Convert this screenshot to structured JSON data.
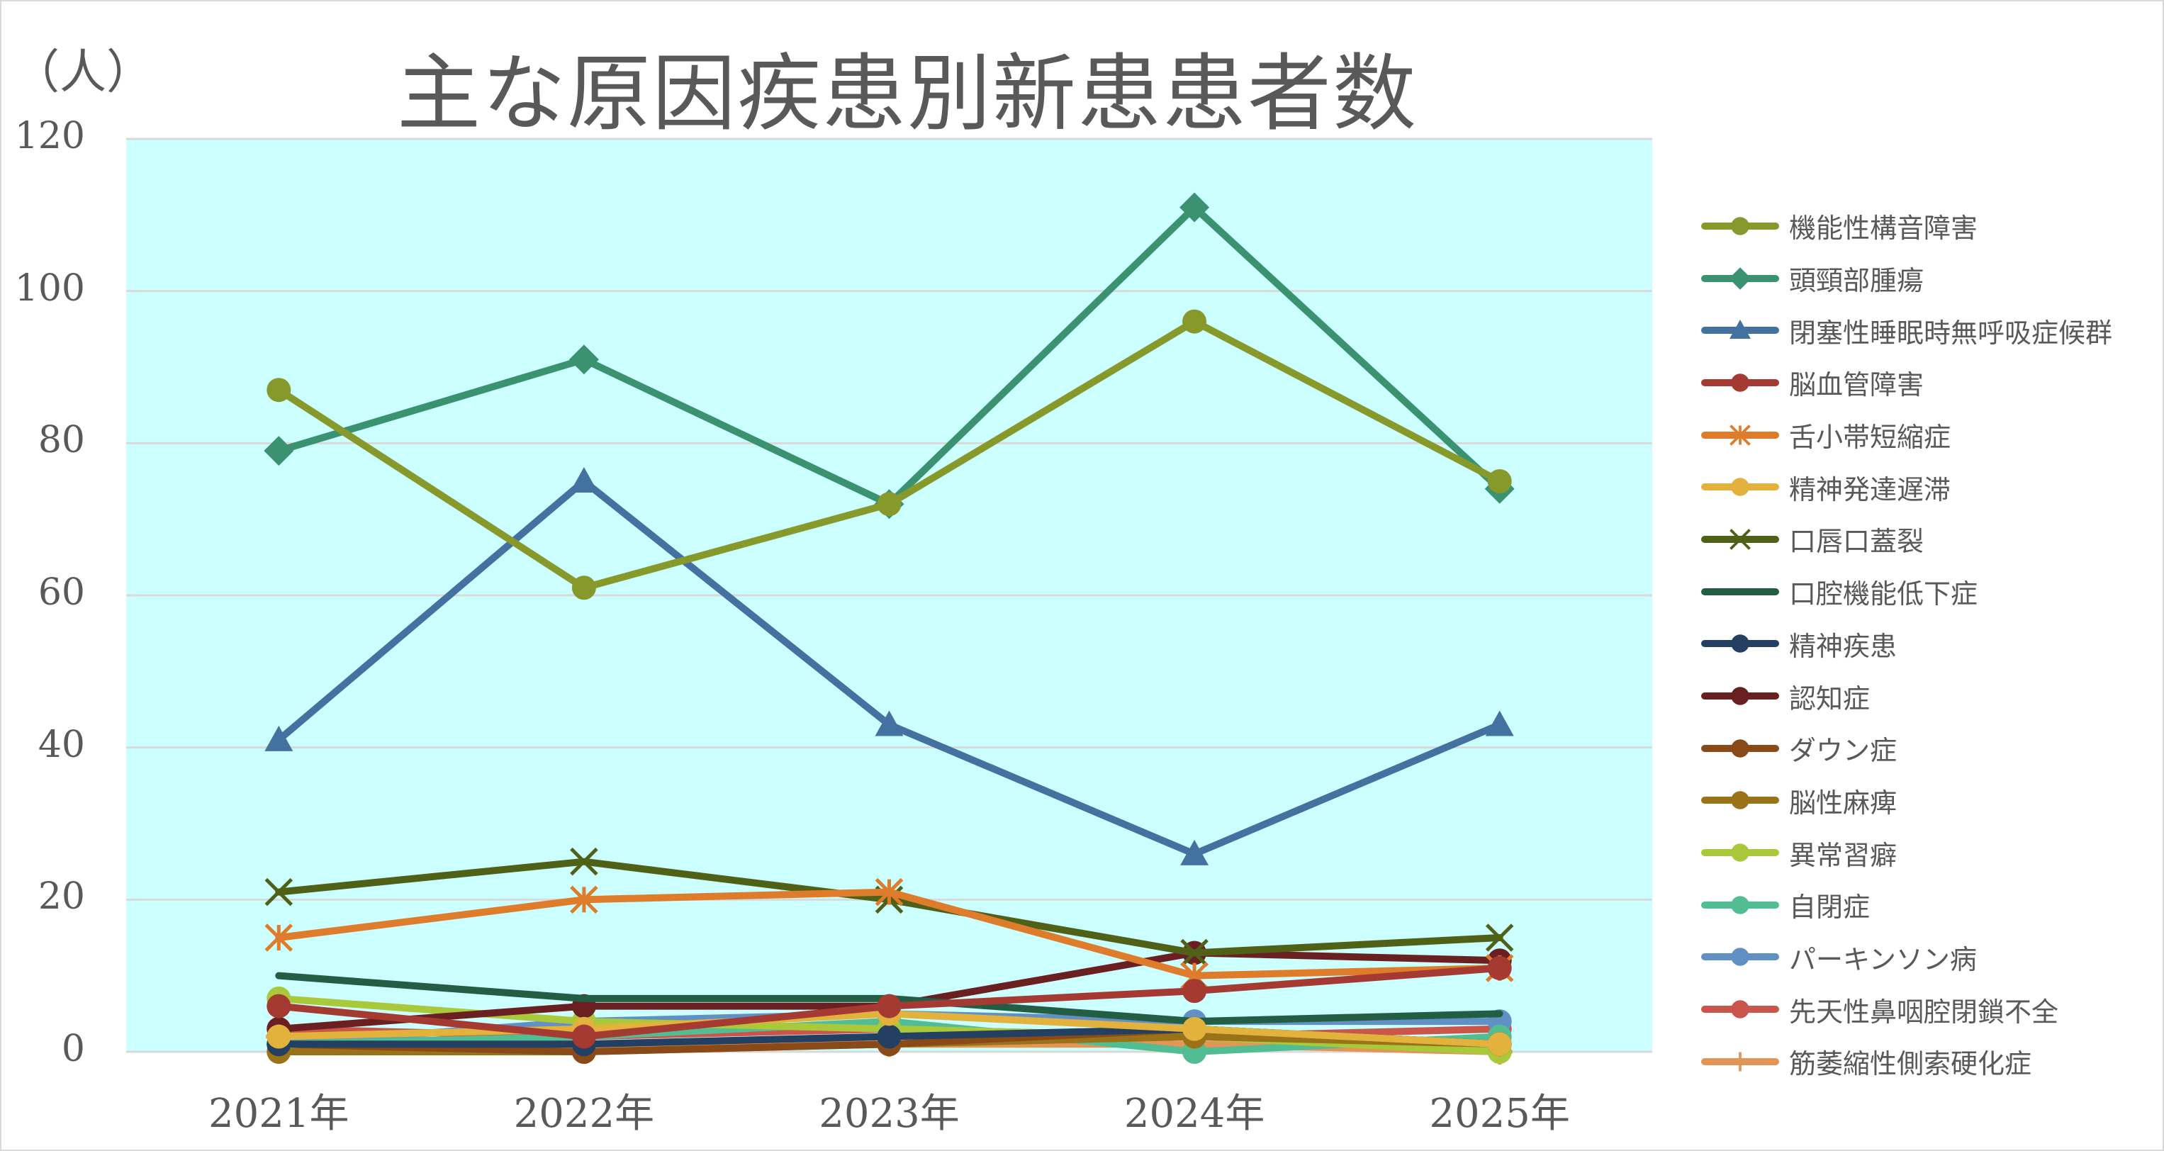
{
  "chart_data": {
    "type": "line",
    "title": "主な原因疾患別新患患者数",
    "ylabel": "（人）",
    "xlabel": "",
    "categories": [
      "2021年",
      "2022年",
      "2023年",
      "2024年",
      "2025年"
    ],
    "ylim": [
      0,
      120
    ],
    "yticks": [
      0,
      20,
      40,
      60,
      80,
      100,
      120
    ],
    "grid": true,
    "legend_position": "right",
    "plot_background": "#ccffff",
    "series": [
      {
        "name": "機能性構音障害",
        "color": "#86992a",
        "marker": "circle",
        "values": [
          87,
          61,
          72,
          96,
          75
        ]
      },
      {
        "name": "頭頸部腫瘍",
        "color": "#3a9271",
        "marker": "diamond",
        "values": [
          79,
          91,
          72,
          111,
          74
        ]
      },
      {
        "name": "閉塞性睡眠時無呼吸症候群",
        "color": "#4472a0",
        "marker": "triangle",
        "values": [
          41,
          75,
          43,
          26,
          43
        ]
      },
      {
        "name": "脳血管障害",
        "color": "#a53a33",
        "marker": "circle",
        "values": [
          6,
          2,
          6,
          8,
          11
        ]
      },
      {
        "name": "舌小帯短縮症",
        "color": "#de7c2c",
        "marker": "star",
        "values": [
          15,
          20,
          21,
          10,
          11
        ]
      },
      {
        "name": "精神発達遅滞",
        "color": "#e2b23c",
        "marker": "circle",
        "values": [
          2,
          3,
          5,
          3,
          1
        ]
      },
      {
        "name": "口唇口蓋裂",
        "color": "#4f6117",
        "marker": "x",
        "values": [
          21,
          25,
          20,
          13,
          15
        ]
      },
      {
        "name": "口腔機能低下症",
        "color": "#235e44",
        "marker": "dash",
        "values": [
          10,
          7,
          7,
          4,
          5
        ]
      },
      {
        "name": "精神疾患",
        "color": "#233f61",
        "marker": "circle",
        "values": [
          1,
          1,
          2,
          3,
          1
        ]
      },
      {
        "name": "認知症",
        "color": "#6a2020",
        "marker": "circle",
        "values": [
          3,
          6,
          6,
          13,
          12
        ]
      },
      {
        "name": "ダウン症",
        "color": "#8a4a18",
        "marker": "circle",
        "values": [
          1,
          0,
          1,
          3,
          1
        ]
      },
      {
        "name": "脳性麻痺",
        "color": "#9a7218",
        "marker": "circle",
        "values": [
          0,
          0,
          1,
          2,
          1
        ]
      },
      {
        "name": "異常習癖",
        "color": "#aac93a",
        "marker": "circle",
        "values": [
          7,
          4,
          3,
          2,
          0
        ]
      },
      {
        "name": "自閉症",
        "color": "#52bd93",
        "marker": "circle",
        "values": [
          1,
          2,
          4,
          0,
          2
        ]
      },
      {
        "name": "パーキンソン病",
        "color": "#6191c4",
        "marker": "circle",
        "values": [
          1,
          4,
          5,
          4,
          4
        ]
      },
      {
        "name": "先天性鼻咽腔閉鎖不全",
        "color": "#c9554b",
        "marker": "circle",
        "values": [
          3,
          2,
          3,
          2,
          3
        ]
      },
      {
        "name": "筋萎縮性側索硬化症",
        "color": "#e39556",
        "marker": "plus",
        "values": [
          2,
          1,
          1,
          1,
          0
        ]
      }
    ]
  }
}
